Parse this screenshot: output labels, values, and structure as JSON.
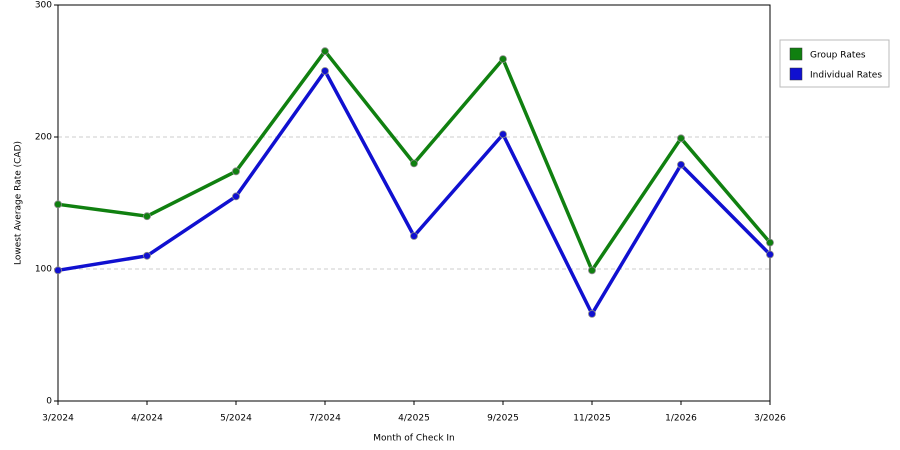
{
  "chart_data": {
    "type": "line",
    "x_label": "Month of Check In",
    "y_label": "Lowest Average Rate (CAD)",
    "categories": [
      "3/2024",
      "4/2024",
      "5/2024",
      "7/2024",
      "4/2025",
      "9/2025",
      "11/2025",
      "1/2026",
      "3/2026"
    ],
    "series": [
      {
        "name": "Group Rates",
        "color": "#108010",
        "values": [
          149,
          140,
          174,
          265,
          180,
          259,
          99,
          199,
          120
        ]
      },
      {
        "name": "Individual Rates",
        "color": "#1010d0",
        "values": [
          99,
          110,
          155,
          250,
          125,
          202,
          66,
          179,
          111
        ]
      }
    ],
    "ylim": [
      0,
      300
    ],
    "yticks": [
      0,
      100,
      200,
      300
    ],
    "grid": true,
    "legend": "right"
  }
}
